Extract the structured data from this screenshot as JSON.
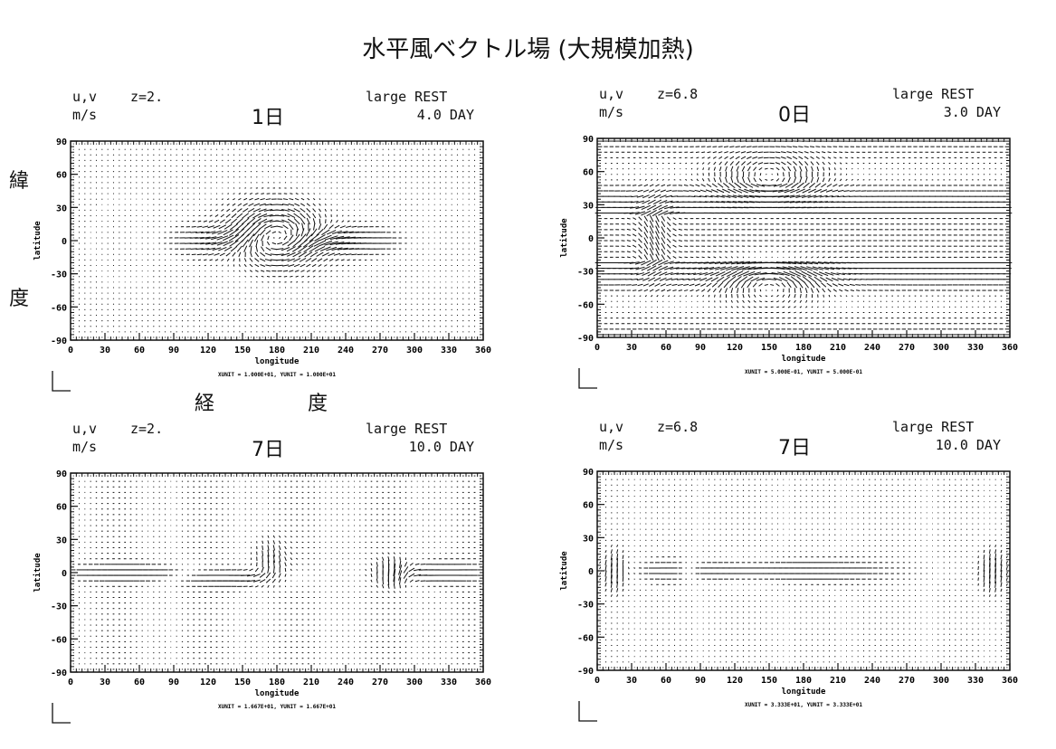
{
  "title": "水平風ベクトル場 (大規模加熱)",
  "side_notes": {
    "lat_chars": [
      "緯",
      "度"
    ],
    "lon_chars": [
      "経",
      "度"
    ]
  },
  "chart_data": [
    {
      "type": "vector",
      "vars": "u,v",
      "level": "z=2.",
      "units": "m/s",
      "day_label": "1日",
      "case": "large REST",
      "time": "4.0 DAY",
      "xlabel": "longitude",
      "ylabel": "latitude",
      "xlim": [
        0,
        360
      ],
      "ylim": [
        -90,
        90
      ],
      "xticks": [
        0,
        30,
        60,
        90,
        120,
        150,
        180,
        210,
        240,
        270,
        300,
        330,
        360
      ],
      "yticks": [
        90,
        60,
        30,
        0,
        -30,
        -60,
        -90
      ],
      "unit_text": "XUNIT = 1.000E+01, YUNIT = 1.000E+01"
    },
    {
      "type": "vector",
      "vars": "u,v",
      "level": "z=6.8",
      "units": "m/s",
      "day_label": "0日",
      "case": "large REST",
      "time": "3.0 DAY",
      "xlabel": "longitude",
      "ylabel": "latitude",
      "xlim": [
        0,
        360
      ],
      "ylim": [
        -90,
        90
      ],
      "xticks": [
        0,
        30,
        60,
        90,
        120,
        150,
        180,
        210,
        240,
        270,
        300,
        330,
        360
      ],
      "yticks": [
        90,
        60,
        30,
        0,
        -30,
        -60,
        -90
      ],
      "unit_text": "XUNIT = 5.000E-01, YUNIT = 5.000E-01"
    },
    {
      "type": "vector",
      "vars": "u,v",
      "level": "z=2.",
      "units": "m/s",
      "day_label": "7日",
      "case": "large REST",
      "time": "10.0 DAY",
      "xlabel": "longitude",
      "ylabel": "latitude",
      "xlim": [
        0,
        360
      ],
      "ylim": [
        -90,
        90
      ],
      "xticks": [
        0,
        30,
        60,
        90,
        120,
        150,
        180,
        210,
        240,
        270,
        300,
        330,
        360
      ],
      "yticks": [
        90,
        60,
        30,
        0,
        -30,
        -60,
        -90
      ],
      "unit_text": "XUNIT = 1.667E+01, YUNIT = 1.667E+01"
    },
    {
      "type": "vector",
      "vars": "u,v",
      "level": "z=6.8",
      "units": "m/s",
      "day_label": "7日",
      "case": "large REST",
      "time": "10.0 DAY",
      "xlabel": "longitude",
      "ylabel": "latitude",
      "xlim": [
        0,
        360
      ],
      "ylim": [
        -90,
        90
      ],
      "xticks": [
        0,
        30,
        60,
        90,
        120,
        150,
        180,
        210,
        240,
        270,
        300,
        330,
        360
      ],
      "yticks": [
        90,
        60,
        30,
        0,
        -30,
        -60,
        -90
      ],
      "unit_text": "XUNIT = 3.333E+01, YUNIT = 3.333E+01"
    }
  ]
}
